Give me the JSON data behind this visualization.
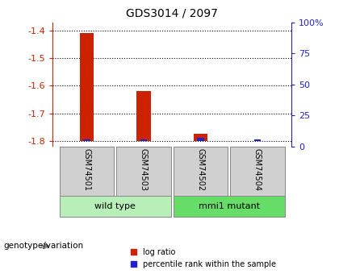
{
  "title": "GDS3014 / 2097",
  "samples": [
    "GSM74501",
    "GSM74503",
    "GSM74502",
    "GSM74504"
  ],
  "log_ratios": [
    -1.41,
    -1.62,
    -1.775,
    -1.8
  ],
  "percentile_ranks": [
    3,
    3,
    5,
    2
  ],
  "ylim_left": [
    -1.82,
    -1.37
  ],
  "yticks_left": [
    -1.8,
    -1.7,
    -1.6,
    -1.5,
    -1.4
  ],
  "ytick_labels_left": [
    "-1.8",
    "-1.7",
    "-1.6",
    "-1.5",
    "-1.4"
  ],
  "yticks_right_pct": [
    0,
    25,
    50,
    75,
    100
  ],
  "ytick_labels_right": [
    "0",
    "25",
    "50",
    "75",
    "100%"
  ],
  "bar_bottom": -1.8,
  "groups": [
    {
      "label": "wild type",
      "indices": [
        0,
        1
      ],
      "color": "#b8eeb8"
    },
    {
      "label": "mmi1 mutant",
      "indices": [
        2,
        3
      ],
      "color": "#66dd66"
    }
  ],
  "bar_color_red": "#cc2200",
  "bar_color_blue": "#2222cc",
  "sample_box_color": "#d0d0d0",
  "legend_red": "log ratio",
  "legend_blue": "percentile rank within the sample",
  "xlabel_group": "genotype/variation",
  "red_bar_width": 0.25,
  "blue_bar_width": 0.12
}
